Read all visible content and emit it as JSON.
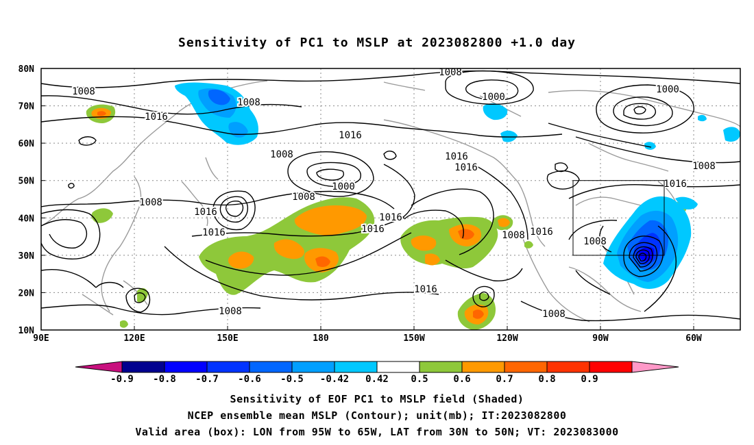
{
  "title": "Sensitivity of PC1 to MSLP at 2023082800 +1.0 day",
  "map": {
    "lat_ticks": [
      "80N",
      "70N",
      "60N",
      "50N",
      "40N",
      "30N",
      "20N",
      "10N"
    ],
    "lon_ticks": [
      "90E",
      "120E",
      "150E",
      "180",
      "150W",
      "120W",
      "90W",
      "60W"
    ],
    "extent": {
      "lon_min": 90,
      "lon_max": 315,
      "lat_min": 10,
      "lat_max": 80
    },
    "box": {
      "lon_from": "95W",
      "lon_to": "65W",
      "lat_from": "30N",
      "lat_to": "50N"
    },
    "contour_labels": [
      "1008",
      "1000",
      "1000",
      "1008",
      "1008",
      "1016",
      "1016",
      "1008",
      "1000",
      "1016",
      "1016",
      "1016",
      "1008",
      "1008",
      "1016",
      "1016",
      "1016",
      "1016",
      "1008",
      "1008",
      "1016",
      "1008",
      "1008"
    ]
  },
  "colorbar": {
    "labels": [
      "-0.9",
      "-0.8",
      "-0.7",
      "-0.6",
      "-0.5",
      "-0.42",
      "0.42",
      "0.5",
      "0.6",
      "0.7",
      "0.8",
      "0.9"
    ],
    "colors": [
      "#00008f",
      "#0000ff",
      "#0033ff",
      "#0066ff",
      "#009fff",
      "#00c8ff",
      "#ffffff",
      "#8ec83a",
      "#ff9900",
      "#ff6600",
      "#ff3300",
      "#ff0000"
    ],
    "low_end_color": "#c8107e",
    "high_end_color": "#ff99c8"
  },
  "captions": {
    "line1": "Sensitivity of EOF PC1 to MSLP field (Shaded)",
    "line2": "NCEP ensemble mean MSLP (Contour); unit(mb); IT:2023082800",
    "line3": "Valid area (box): LON from 95W to 65W, LAT from 30N to 50N; VT: 2023083000"
  }
}
